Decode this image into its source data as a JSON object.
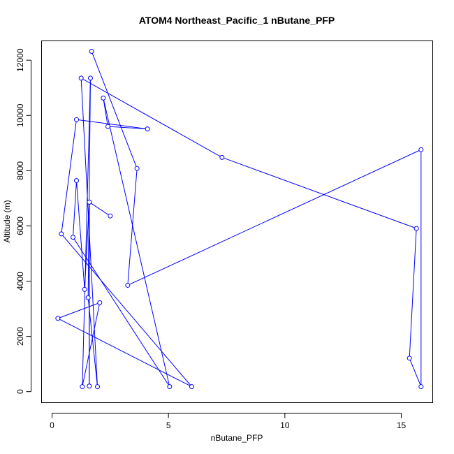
{
  "chart_data": {
    "type": "scatter",
    "title": "ATOM4 Northeast_Pacific_1 nButane_PFP",
    "xlabel": "nButane_PFP",
    "ylabel": "Altitude (m)",
    "xlim": [
      -0.45,
      16.35
    ],
    "ylim": [
      -400,
      12700
    ],
    "x_ticks": [
      0,
      5,
      10,
      15
    ],
    "y_ticks": [
      0,
      2000,
      4000,
      6000,
      8000,
      10000,
      12000
    ],
    "x_tick_labels": [
      "0",
      "5",
      "10",
      "15"
    ],
    "y_tick_labels": [
      "0",
      "2000",
      "4000",
      "6000",
      "8000",
      "10000",
      "12000"
    ],
    "grid": false,
    "legend": "none",
    "color": "#0000ff",
    "marker": "open-circle",
    "connected": true,
    "points": [
      {
        "x": 1.7,
        "y": 12320
      },
      {
        "x": 3.65,
        "y": 8080
      },
      {
        "x": 3.25,
        "y": 3850
      },
      {
        "x": 15.85,
        "y": 8760
      },
      {
        "x": 15.85,
        "y": 180
      },
      {
        "x": 15.35,
        "y": 1210
      },
      {
        "x": 15.65,
        "y": 5910
      },
      {
        "x": 7.3,
        "y": 8480
      },
      {
        "x": 1.25,
        "y": 11350
      },
      {
        "x": 1.95,
        "y": 180
      },
      {
        "x": 1.55,
        "y": 3400
      },
      {
        "x": 1.65,
        "y": 11350
      },
      {
        "x": 1.3,
        "y": 180
      },
      {
        "x": 2.05,
        "y": 3220
      },
      {
        "x": 0.25,
        "y": 2650
      },
      {
        "x": 6.0,
        "y": 180
      },
      {
        "x": 0.4,
        "y": 5710
      },
      {
        "x": 1.05,
        "y": 9850
      },
      {
        "x": 4.1,
        "y": 9510
      },
      {
        "x": 2.4,
        "y": 9600
      },
      {
        "x": 2.2,
        "y": 10630
      },
      {
        "x": 5.05,
        "y": 180
      },
      {
        "x": 0.9,
        "y": 5590
      },
      {
        "x": 1.05,
        "y": 7640
      },
      {
        "x": 1.4,
        "y": 3700
      },
      {
        "x": 1.6,
        "y": 6860
      },
      {
        "x": 1.6,
        "y": 200
      },
      {
        "x": 1.6,
        "y": 6860
      },
      {
        "x": 2.5,
        "y": 6360
      }
    ]
  }
}
